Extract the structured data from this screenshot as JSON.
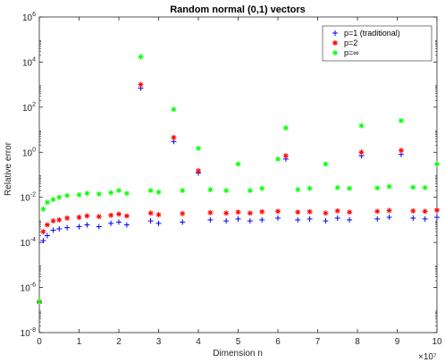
{
  "chart_data": {
    "type": "scatter",
    "title": "Random normal (0,1) vectors",
    "xlabel": "Dimension n",
    "ylabel": "Relative error",
    "x_multiplier": "×10⁷",
    "xscale": "linear",
    "yscale": "log",
    "xlim": [
      0,
      100000000
    ],
    "ylim": [
      1e-08,
      1000000.0
    ],
    "x_ticks": [
      {
        "value": 0,
        "label": "0"
      },
      {
        "value": 10000000,
        "label": "1"
      },
      {
        "value": 20000000,
        "label": "2"
      },
      {
        "value": 30000000,
        "label": "3"
      },
      {
        "value": 40000000,
        "label": "4"
      },
      {
        "value": 50000000,
        "label": "5"
      },
      {
        "value": 60000000,
        "label": "6"
      },
      {
        "value": 70000000,
        "label": "7"
      },
      {
        "value": 80000000,
        "label": "8"
      },
      {
        "value": 90000000,
        "label": "9"
      },
      {
        "value": 100000000,
        "label": "10"
      }
    ],
    "y_ticks": [
      {
        "value": 1e-08,
        "base": "10",
        "exp": "-8"
      },
      {
        "value": 1e-06,
        "base": "10",
        "exp": "-6"
      },
      {
        "value": 0.0001,
        "base": "10",
        "exp": "-4"
      },
      {
        "value": 0.01,
        "base": "10",
        "exp": "-2"
      },
      {
        "value": 1,
        "base": "10",
        "exp": "0"
      },
      {
        "value": 100,
        "base": "10",
        "exp": "2"
      },
      {
        "value": 10000,
        "base": "10",
        "exp": "4"
      },
      {
        "value": 1000000,
        "base": "10",
        "exp": "6"
      }
    ],
    "grid": false,
    "legend_position": "top-right",
    "series": [
      {
        "name": "p=1 (traditional)",
        "color": "#0000ff",
        "marker": "plus",
        "x": [
          0,
          1000000,
          2000000,
          3500000,
          5000000,
          7000000,
          10000000,
          12000000,
          15000000,
          18000000,
          20000000,
          22000000,
          25500000,
          28000000,
          30000000,
          33800000,
          36000000,
          40000000,
          43000000,
          47000000,
          50000000,
          53000000,
          56000000,
          60000000,
          62000000,
          65000000,
          68000000,
          72000000,
          75000000,
          78000000,
          81000000,
          85000000,
          88000000,
          91000000,
          94000000,
          97000000,
          100000000
        ],
        "y": [
          2.2e-07,
          0.00012,
          0.0002,
          0.00035,
          0.0004,
          0.00045,
          0.0005,
          0.0006,
          0.0005,
          0.0007,
          0.0008,
          0.0006,
          700,
          0.0009,
          0.0007,
          3,
          0.0008,
          0.12,
          0.001,
          0.0009,
          0.0011,
          0.0009,
          0.001,
          0.0012,
          0.5,
          0.001,
          0.0011,
          0.0009,
          0.0012,
          0.001,
          0.7,
          0.0011,
          0.0013,
          0.8,
          0.0012,
          0.0011,
          0.0013
        ]
      },
      {
        "name": "p=2",
        "color": "#ff0000",
        "marker": "asterisk",
        "x": [
          0,
          1000000,
          2000000,
          3500000,
          5000000,
          7000000,
          10000000,
          12000000,
          15000000,
          18000000,
          20000000,
          22000000,
          25500000,
          28000000,
          30000000,
          33800000,
          36000000,
          40000000,
          43000000,
          47000000,
          50000000,
          53000000,
          56000000,
          60000000,
          62000000,
          65000000,
          68000000,
          72000000,
          75000000,
          78000000,
          81000000,
          85000000,
          88000000,
          91000000,
          94000000,
          97000000,
          100000000
        ],
        "y": [
          2.3e-07,
          0.0003,
          0.0006,
          0.0009,
          0.001,
          0.0012,
          0.0013,
          0.0015,
          0.0014,
          0.0016,
          0.0018,
          0.0015,
          1000,
          0.002,
          0.0017,
          4.5,
          0.0019,
          0.15,
          0.0021,
          0.002,
          0.0022,
          0.002,
          0.0023,
          0.0024,
          0.7,
          0.0022,
          0.0023,
          0.002,
          0.0025,
          0.0022,
          1,
          0.0024,
          0.0026,
          1.2,
          0.0025,
          0.0024,
          0.0027
        ]
      },
      {
        "name": "p=∞",
        "color": "#00ff00",
        "marker": "asterisk",
        "x": [
          0,
          1000000,
          2000000,
          3500000,
          5000000,
          7000000,
          10000000,
          12000000,
          15000000,
          18000000,
          20000000,
          22000000,
          25500000,
          28000000,
          30000000,
          33800000,
          36000000,
          40000000,
          43000000,
          47000000,
          50000000,
          53000000,
          56000000,
          60000000,
          62000000,
          65000000,
          68000000,
          72000000,
          75000000,
          78000000,
          81000000,
          85000000,
          88000000,
          91000000,
          94000000,
          97000000,
          100000000
        ],
        "y": [
          2.4e-07,
          0.003,
          0.006,
          0.008,
          0.01,
          0.012,
          0.013,
          0.015,
          0.014,
          0.016,
          0.02,
          0.015,
          17000,
          0.02,
          0.017,
          80,
          0.02,
          1.5,
          0.022,
          0.02,
          0.3,
          0.02,
          0.025,
          0.5,
          12,
          0.022,
          0.025,
          0.3,
          0.027,
          0.025,
          15,
          0.026,
          0.03,
          25,
          0.028,
          0.027,
          0.3
        ]
      }
    ]
  }
}
